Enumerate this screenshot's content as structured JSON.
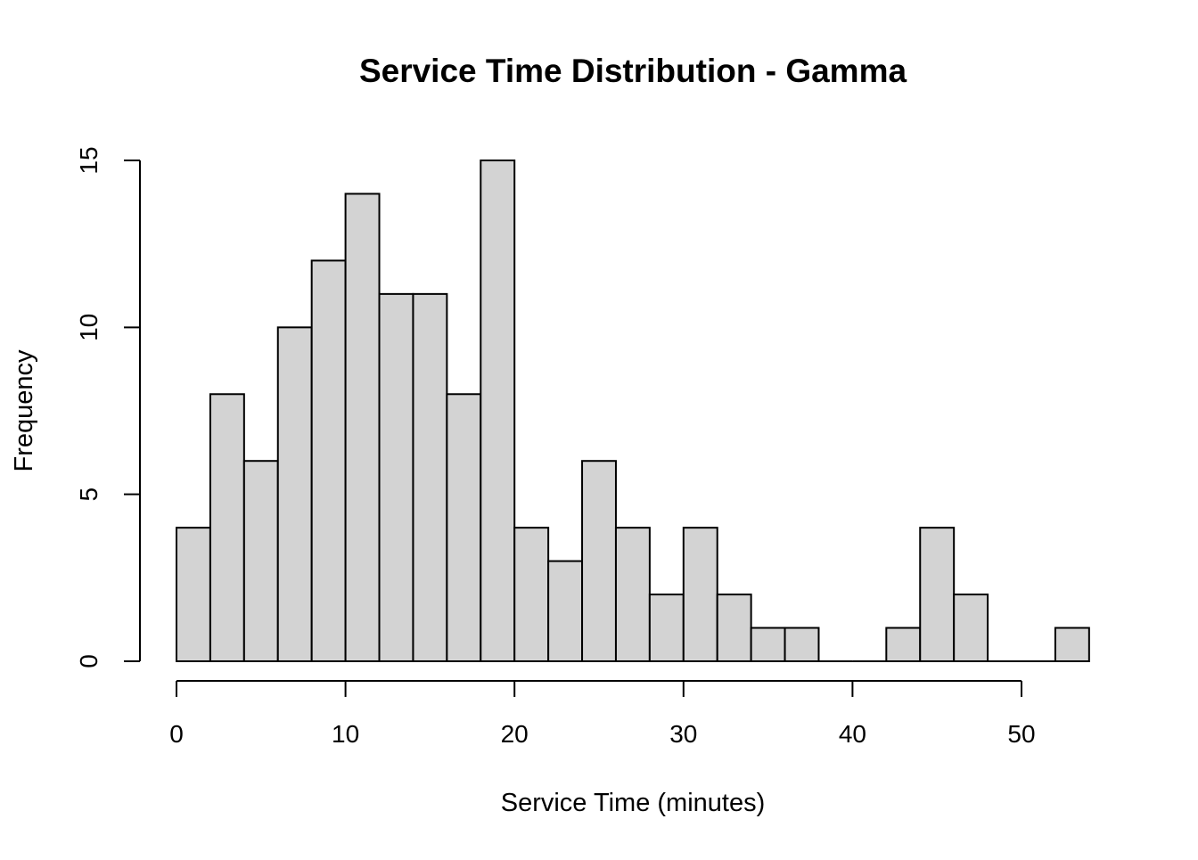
{
  "chart_data": {
    "type": "bar",
    "title": "Service Time Distribution - Gamma",
    "xlabel": "Service Time (minutes)",
    "ylabel": "Frequency",
    "bin_width": 2,
    "bin_edges": [
      0,
      2,
      4,
      6,
      8,
      10,
      12,
      14,
      16,
      18,
      20,
      22,
      24,
      26,
      28,
      30,
      32,
      34,
      36,
      38,
      40,
      42,
      44,
      46,
      48,
      50,
      52,
      54
    ],
    "values": [
      4,
      8,
      6,
      10,
      12,
      14,
      11,
      11,
      8,
      15,
      4,
      3,
      6,
      4,
      2,
      4,
      2,
      1,
      1,
      0,
      0,
      1,
      4,
      2,
      0,
      0,
      1
    ],
    "xlim": [
      0,
      54
    ],
    "ylim": [
      0,
      15
    ],
    "x_ticks": [
      0,
      10,
      20,
      30,
      40,
      50
    ],
    "x_tick_labels": [
      "0",
      "10",
      "20",
      "30",
      "40",
      "50"
    ],
    "y_ticks": [
      0,
      5,
      10,
      15
    ],
    "y_tick_labels": [
      "0",
      "5",
      "10",
      "15"
    ],
    "grid": false,
    "legend": "none",
    "bar_color": "#d3d3d3",
    "edge_color": "#000000"
  }
}
